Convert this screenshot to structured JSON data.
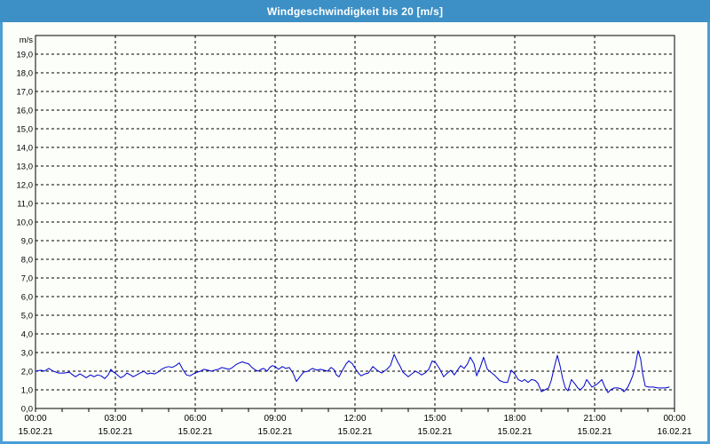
{
  "window": {
    "title": "Windgeschwindigkeit bis 20 [m/s]"
  },
  "colors": {
    "titlebar": "#3d90c6",
    "window_border": "#4c9ed6",
    "background": "#fbfef9",
    "line": "#0000cd",
    "grid": "#000000",
    "text": "#000000"
  },
  "chart_data": {
    "type": "line",
    "title": "Windgeschwindigkeit bis 20 [m/s]",
    "y_unit": "m/s",
    "ylim": [
      0,
      20
    ],
    "y_tick_step": 1,
    "y_tick_labels": [
      "0,0",
      "1,0",
      "2,0",
      "3,0",
      "4,0",
      "5,0",
      "6,0",
      "7,0",
      "8,0",
      "9,0",
      "10,0",
      "11,0",
      "12,0",
      "13,0",
      "14,0",
      "15,0",
      "16,0",
      "17,0",
      "18,0",
      "19,0"
    ],
    "xlim_hours": [
      0,
      24
    ],
    "x_minor_tick_hours": 1,
    "x_major_ticks": [
      {
        "hour": 0,
        "time": "00:00",
        "date": "15.02.21"
      },
      {
        "hour": 3,
        "time": "03:00",
        "date": "15.02.21"
      },
      {
        "hour": 6,
        "time": "06:00",
        "date": "15.02.21"
      },
      {
        "hour": 9,
        "time": "09:00",
        "date": "15.02.21"
      },
      {
        "hour": 12,
        "time": "12:00",
        "date": "15.02.21"
      },
      {
        "hour": 15,
        "time": "15:00",
        "date": "15.02.21"
      },
      {
        "hour": 18,
        "time": "18:00",
        "date": "15.02.21"
      },
      {
        "hour": 21,
        "time": "21:00",
        "date": "15.02.21"
      },
      {
        "hour": 24,
        "time": "00:00",
        "date": "16.02.21"
      }
    ],
    "grid": "dashed",
    "legend": "none",
    "series": [
      {
        "name": "Windgeschwindigkeit",
        "unit": "m/s",
        "color": "#0000cd",
        "points": [
          [
            0,
            2.0
          ],
          [
            0.2,
            2.05
          ],
          [
            0.33,
            2.0
          ],
          [
            0.5,
            2.15
          ],
          [
            0.67,
            2.0
          ],
          [
            0.87,
            1.9
          ],
          [
            1.07,
            1.9
          ],
          [
            1.27,
            1.95
          ],
          [
            1.4,
            1.8
          ],
          [
            1.5,
            1.7
          ],
          [
            1.67,
            1.85
          ],
          [
            1.8,
            1.75
          ],
          [
            1.9,
            1.65
          ],
          [
            2.07,
            1.8
          ],
          [
            2.2,
            1.7
          ],
          [
            2.33,
            1.8
          ],
          [
            2.47,
            1.75
          ],
          [
            2.6,
            1.6
          ],
          [
            2.73,
            1.8
          ],
          [
            2.83,
            2.1
          ],
          [
            2.93,
            1.95
          ],
          [
            3.03,
            1.85
          ],
          [
            3.2,
            1.65
          ],
          [
            3.33,
            1.75
          ],
          [
            3.43,
            1.9
          ],
          [
            3.57,
            1.8
          ],
          [
            3.67,
            1.7
          ],
          [
            3.8,
            1.8
          ],
          [
            3.93,
            1.9
          ],
          [
            4.07,
            2.0
          ],
          [
            4.2,
            1.85
          ],
          [
            4.33,
            1.9
          ],
          [
            4.47,
            1.85
          ],
          [
            4.6,
            1.95
          ],
          [
            4.73,
            2.1
          ],
          [
            4.87,
            2.2
          ],
          [
            5.0,
            2.25
          ],
          [
            5.13,
            2.2
          ],
          [
            5.27,
            2.3
          ],
          [
            5.4,
            2.45
          ],
          [
            5.53,
            2.1
          ],
          [
            5.67,
            1.8
          ],
          [
            5.8,
            1.75
          ],
          [
            5.93,
            1.85
          ],
          [
            6.07,
            1.95
          ],
          [
            6.2,
            2.0
          ],
          [
            6.33,
            2.1
          ],
          [
            6.47,
            2.05
          ],
          [
            6.6,
            2.0
          ],
          [
            6.73,
            2.05
          ],
          [
            6.87,
            2.1
          ],
          [
            7.0,
            2.2
          ],
          [
            7.13,
            2.15
          ],
          [
            7.27,
            2.1
          ],
          [
            7.4,
            2.2
          ],
          [
            7.53,
            2.35
          ],
          [
            7.67,
            2.45
          ],
          [
            7.77,
            2.5
          ],
          [
            7.87,
            2.45
          ],
          [
            8.0,
            2.4
          ],
          [
            8.13,
            2.2
          ],
          [
            8.27,
            2.05
          ],
          [
            8.37,
            2.0
          ],
          [
            8.47,
            2.1
          ],
          [
            8.57,
            2.15
          ],
          [
            8.7,
            2.0
          ],
          [
            8.8,
            2.2
          ],
          [
            8.9,
            2.3
          ],
          [
            9.0,
            2.25
          ],
          [
            9.13,
            2.1
          ],
          [
            9.27,
            2.25
          ],
          [
            9.4,
            2.15
          ],
          [
            9.53,
            2.2
          ],
          [
            9.67,
            1.9
          ],
          [
            9.8,
            1.45
          ],
          [
            9.93,
            1.7
          ],
          [
            10.07,
            1.95
          ],
          [
            10.23,
            2.0
          ],
          [
            10.4,
            2.15
          ],
          [
            10.57,
            2.05
          ],
          [
            10.7,
            2.1
          ],
          [
            10.83,
            2.05
          ],
          [
            10.97,
            2.0
          ],
          [
            11.1,
            2.2
          ],
          [
            11.2,
            2.1
          ],
          [
            11.3,
            1.8
          ],
          [
            11.4,
            1.7
          ],
          [
            11.53,
            2.05
          ],
          [
            11.67,
            2.4
          ],
          [
            11.77,
            2.55
          ],
          [
            11.9,
            2.4
          ],
          [
            12.03,
            2.1
          ],
          [
            12.13,
            1.9
          ],
          [
            12.23,
            1.75
          ],
          [
            12.37,
            1.85
          ],
          [
            12.5,
            1.9
          ],
          [
            12.67,
            2.25
          ],
          [
            12.83,
            2.05
          ],
          [
            13.0,
            1.9
          ],
          [
            13.2,
            2.1
          ],
          [
            13.33,
            2.3
          ],
          [
            13.47,
            2.9
          ],
          [
            13.6,
            2.5
          ],
          [
            13.7,
            2.25
          ],
          [
            13.8,
            1.95
          ],
          [
            14.0,
            1.7
          ],
          [
            14.13,
            1.85
          ],
          [
            14.27,
            2.0
          ],
          [
            14.4,
            1.9
          ],
          [
            14.5,
            1.8
          ],
          [
            14.63,
            1.9
          ],
          [
            14.77,
            2.1
          ],
          [
            14.9,
            2.55
          ],
          [
            15.03,
            2.45
          ],
          [
            15.17,
            2.15
          ],
          [
            15.33,
            1.7
          ],
          [
            15.47,
            1.9
          ],
          [
            15.6,
            2.05
          ],
          [
            15.73,
            1.8
          ],
          [
            15.87,
            2.1
          ],
          [
            15.97,
            2.3
          ],
          [
            16.1,
            2.15
          ],
          [
            16.23,
            2.4
          ],
          [
            16.33,
            2.75
          ],
          [
            16.47,
            2.4
          ],
          [
            16.57,
            1.75
          ],
          [
            16.7,
            2.2
          ],
          [
            16.83,
            2.75
          ],
          [
            16.97,
            2.1
          ],
          [
            17.1,
            1.95
          ],
          [
            17.27,
            1.75
          ],
          [
            17.43,
            1.5
          ],
          [
            17.6,
            1.4
          ],
          [
            17.73,
            1.4
          ],
          [
            17.87,
            2.05
          ],
          [
            18.0,
            1.85
          ],
          [
            18.13,
            1.55
          ],
          [
            18.27,
            1.45
          ],
          [
            18.37,
            1.55
          ],
          [
            18.5,
            1.4
          ],
          [
            18.63,
            1.55
          ],
          [
            18.77,
            1.5
          ],
          [
            18.87,
            1.35
          ],
          [
            19.0,
            0.9
          ],
          [
            19.13,
            1.0
          ],
          [
            19.27,
            1.1
          ],
          [
            19.37,
            1.5
          ],
          [
            19.5,
            2.3
          ],
          [
            19.6,
            2.85
          ],
          [
            19.7,
            2.3
          ],
          [
            19.8,
            1.6
          ],
          [
            19.9,
            1.1
          ],
          [
            20.0,
            0.95
          ],
          [
            20.13,
            1.55
          ],
          [
            20.27,
            1.3
          ],
          [
            20.37,
            1.1
          ],
          [
            20.47,
            1.0
          ],
          [
            20.6,
            1.2
          ],
          [
            20.7,
            1.55
          ],
          [
            20.8,
            1.35
          ],
          [
            20.9,
            1.15
          ],
          [
            21.03,
            1.25
          ],
          [
            21.13,
            1.35
          ],
          [
            21.27,
            1.55
          ],
          [
            21.37,
            1.2
          ],
          [
            21.5,
            0.85
          ],
          [
            21.6,
            1.0
          ],
          [
            21.73,
            1.1
          ],
          [
            21.87,
            1.1
          ],
          [
            22.0,
            1.05
          ],
          [
            22.1,
            0.9
          ],
          [
            22.23,
            1.1
          ],
          [
            22.33,
            1.4
          ],
          [
            22.43,
            1.75
          ],
          [
            22.53,
            2.3
          ],
          [
            22.63,
            3.1
          ],
          [
            22.73,
            2.65
          ],
          [
            22.8,
            1.9
          ],
          [
            22.9,
            1.2
          ],
          [
            23.03,
            1.15
          ],
          [
            23.2,
            1.15
          ],
          [
            23.37,
            1.1
          ],
          [
            23.53,
            1.1
          ],
          [
            23.67,
            1.1
          ],
          [
            23.8,
            1.15
          ]
        ]
      }
    ]
  }
}
